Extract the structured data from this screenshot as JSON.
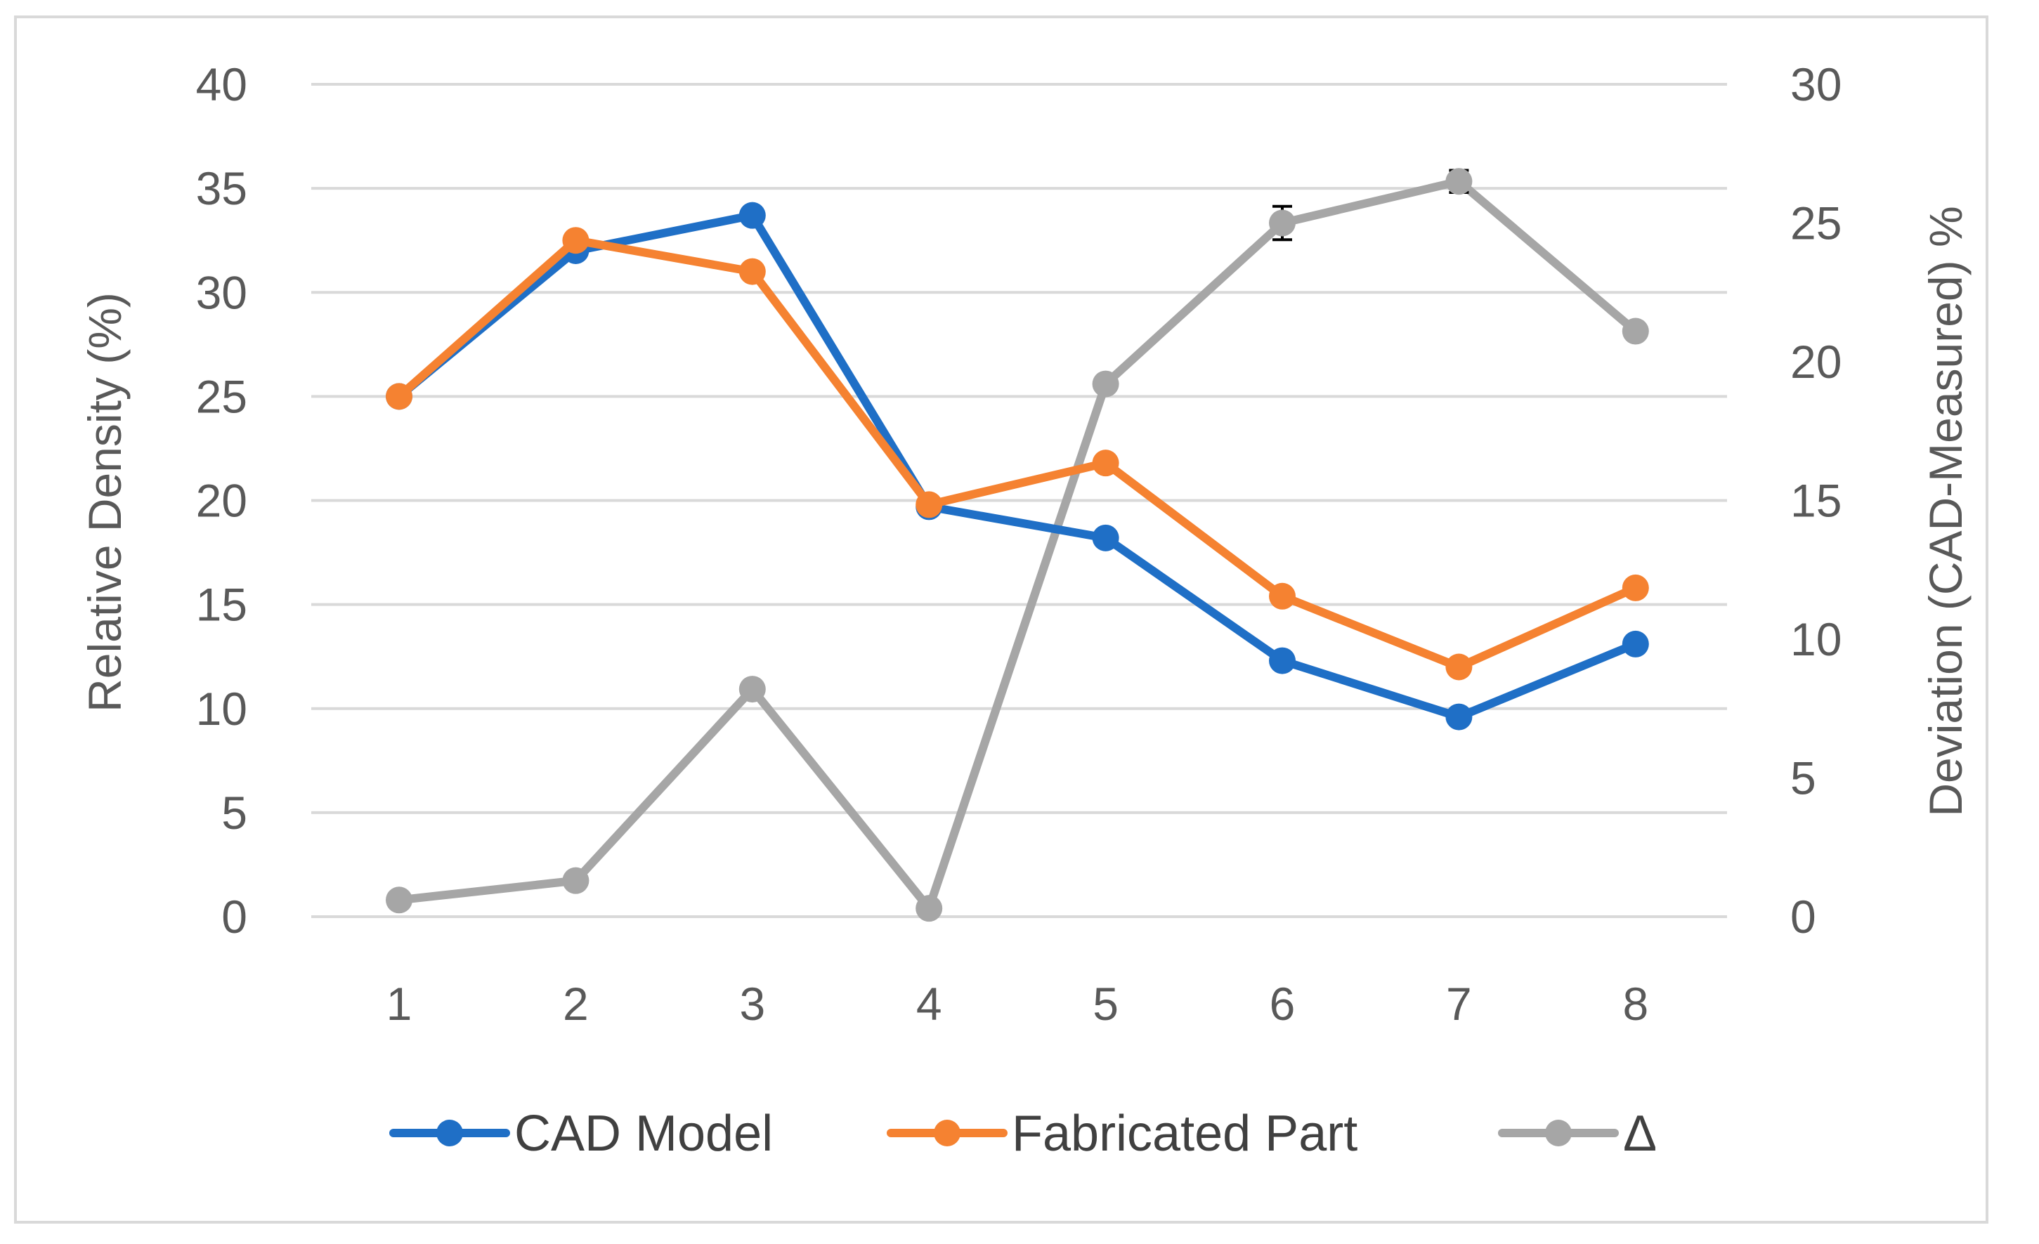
{
  "chart_data": {
    "type": "line",
    "categories": [
      "1",
      "2",
      "3",
      "4",
      "5",
      "6",
      "7",
      "8"
    ],
    "y_left": {
      "title": "Relative Density (%)",
      "ylim": [
        0,
        40
      ],
      "ticks": [
        "0",
        "5",
        "10",
        "15",
        "20",
        "25",
        "30",
        "35",
        "40"
      ]
    },
    "y_right": {
      "title": "Deviation (CAD-Measured) %",
      "ylim": [
        0,
        30
      ],
      "ticks": [
        "0",
        "5",
        "10",
        "15",
        "20",
        "25",
        "30"
      ]
    },
    "grid": true,
    "legend_position": "bottom",
    "series": [
      {
        "name": "CAD Model",
        "axis": "left",
        "color": "#1f6fc6",
        "values": [
          25.0,
          32.0,
          33.7,
          19.7,
          18.2,
          12.3,
          9.6,
          13.1
        ]
      },
      {
        "name": "Fabricated Part",
        "axis": "left",
        "color": "#f58231",
        "values": [
          25.0,
          32.5,
          31.0,
          19.8,
          21.8,
          15.4,
          12.0,
          15.8
        ]
      },
      {
        "name": "Δ",
        "axis": "right",
        "color": "#a6a6a6",
        "values": [
          0.6,
          1.3,
          8.2,
          0.3,
          19.2,
          25.0,
          26.5,
          21.1
        ],
        "error_bars": [
          0,
          0,
          0,
          0,
          0,
          0.6,
          0.4,
          0
        ]
      }
    ]
  }
}
